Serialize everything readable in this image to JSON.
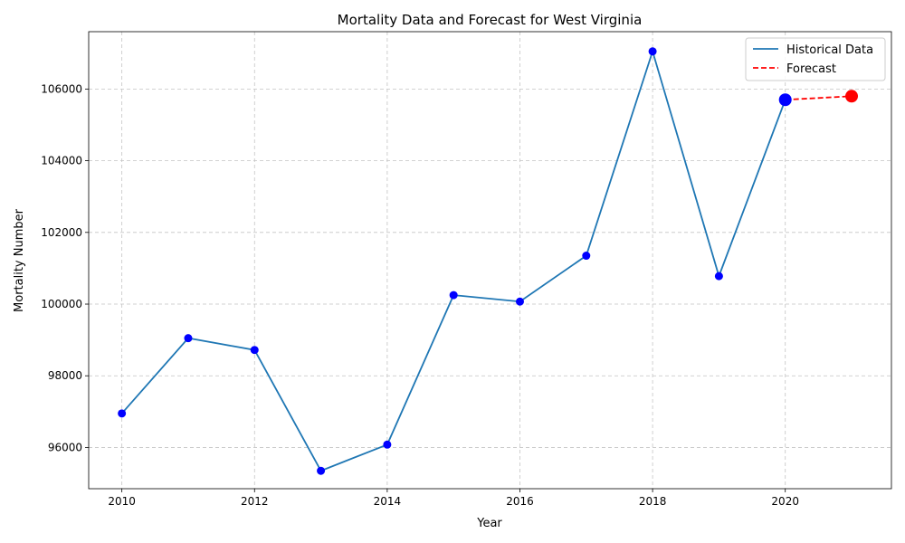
{
  "chart_data": {
    "type": "line",
    "title": "Mortality Data and Forecast for West Virginia",
    "xlabel": "Year",
    "ylabel": "Mortality Number",
    "xlim": [
      2009.5,
      2021.6
    ],
    "ylim": [
      94850,
      107600
    ],
    "xticks": [
      2010,
      2012,
      2014,
      2016,
      2018,
      2020
    ],
    "yticks": [
      96000,
      98000,
      100000,
      102000,
      104000,
      106000
    ],
    "grid": true,
    "legend_position": "top-right",
    "series": [
      {
        "name": "Historical Data",
        "color": "#1f77b4",
        "marker_color": "#0000ff",
        "style": "solid",
        "x": [
          2010,
          2011,
          2012,
          2013,
          2014,
          2015,
          2016,
          2017,
          2018,
          2019,
          2020
        ],
        "y": [
          96950,
          99050,
          98720,
          95350,
          96080,
          100250,
          100070,
          101350,
          107050,
          100780,
          105700
        ]
      },
      {
        "name": "Forecast",
        "color": "#ff0000",
        "style": "dashed",
        "x": [
          2020,
          2021
        ],
        "y": [
          105700,
          105800
        ]
      }
    ],
    "highlight_points": [
      {
        "x": 2020,
        "y": 105700,
        "color": "#0000ff"
      },
      {
        "x": 2021,
        "y": 105800,
        "color": "#ff0000"
      }
    ]
  }
}
